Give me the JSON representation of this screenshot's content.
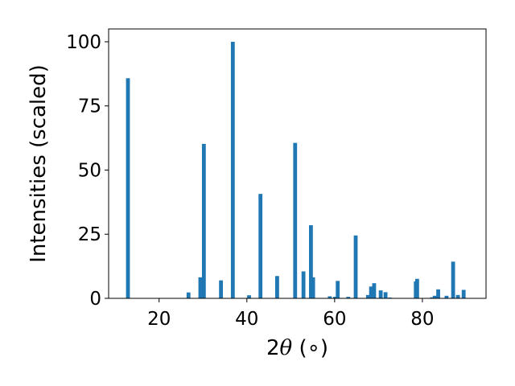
{
  "chart_data": {
    "type": "bar",
    "xlabel": "2θ (∘)",
    "xlabel_parts": {
      "prefix": "2",
      "symbol": "θ",
      "unit": " (∘)"
    },
    "ylabel": "Intensities (scaled)",
    "xlim": [
      8.5,
      94.5
    ],
    "ylim": [
      0,
      105
    ],
    "xticks": [
      20,
      40,
      60,
      80
    ],
    "yticks": [
      0,
      25,
      50,
      75,
      100
    ],
    "bar_color": "#1f77b4",
    "grid": false,
    "x": [
      12.9,
      26.7,
      29.4,
      30.2,
      34.1,
      36.8,
      40.5,
      43.1,
      46.9,
      51.0,
      52.9,
      54.6,
      55.1,
      58.9,
      60.1,
      60.7,
      63.1,
      64.8,
      67.6,
      68.3,
      69.0,
      70.5,
      71.6,
      72.6,
      78.5,
      78.8,
      82.2,
      82.8,
      83.6,
      85.5,
      87.0,
      88.1,
      89.4
    ],
    "values": [
      85.8,
      2.3,
      8.2,
      60.2,
      7.0,
      100.0,
      1.2,
      40.7,
      8.7,
      60.6,
      10.5,
      28.5,
      8.2,
      0.8,
      0.6,
      6.8,
      0.6,
      24.5,
      1.3,
      4.6,
      5.9,
      3.1,
      2.4,
      0.3,
      6.6,
      7.6,
      0.4,
      1.0,
      3.5,
      1.0,
      14.3,
      1.3,
      3.3
    ]
  }
}
